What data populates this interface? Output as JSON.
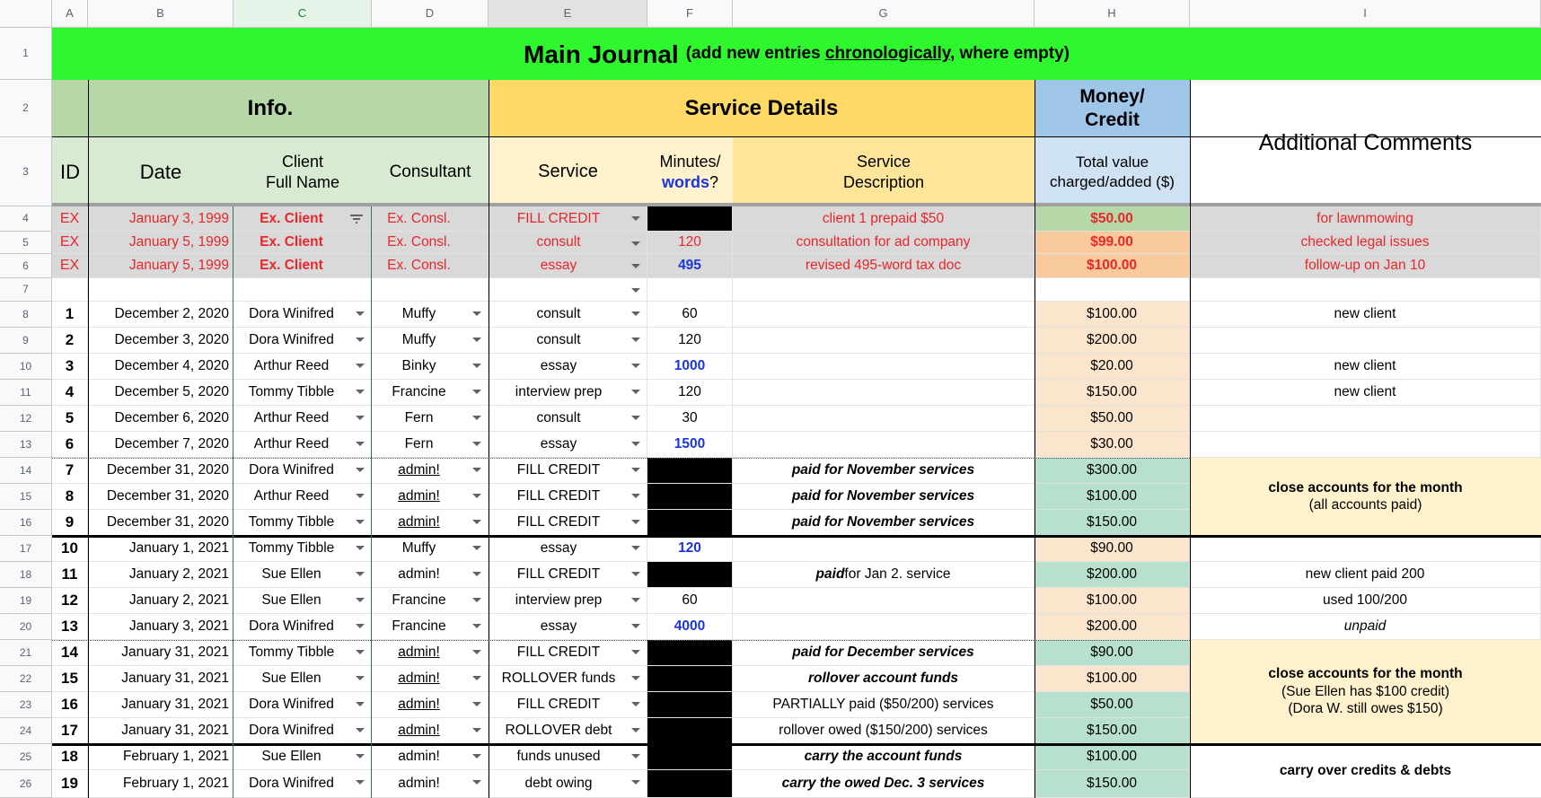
{
  "columns": [
    "A",
    "B",
    "C",
    "D",
    "E",
    "F",
    "G",
    "H",
    "I"
  ],
  "row_numbers": [
    "1",
    "2",
    "3",
    "4",
    "5",
    "6",
    "7",
    "8",
    "9",
    "10",
    "11",
    "12",
    "13",
    "14",
    "15",
    "16",
    "17",
    "18",
    "19",
    "20",
    "21",
    "22",
    "23",
    "24",
    "25",
    "26"
  ],
  "banner": {
    "title": "Main Journal",
    "note_prefix": "(add new entries ",
    "note_emph": "chronologically",
    "note_suffix": ", where empty)"
  },
  "groups": {
    "info": "Info.",
    "service_details": "Service Details",
    "money_line1": "Money/",
    "money_line2": "Credit",
    "comments": "Additional Comments"
  },
  "headers": {
    "id": "ID",
    "date": "Date",
    "client_l1": "Client",
    "client_l2": "Full Name",
    "consultant": "Consultant",
    "service": "Service",
    "minutes_l1": "Minutes/",
    "minutes_words": "words",
    "minutes_q": "?",
    "desc_l1": "Service",
    "desc_l2": "Description",
    "total_l1": "Total value",
    "total_l2": "charged/added ($)"
  },
  "rows": [
    {
      "id": "EX",
      "date": "January 3, 1999",
      "client": "Ex. Client",
      "consultant": "Ex. Consl.",
      "service": "FILL CREDIT",
      "minutes": "",
      "desc": "client 1 prepaid $50",
      "amount": "$50.00",
      "comment": "for lawnmowing"
    },
    {
      "id": "EX",
      "date": "January 5, 1999",
      "client": "Ex. Client",
      "consultant": "Ex. Consl.",
      "service": "consult",
      "minutes": "120",
      "desc": "consultation for ad company",
      "amount": "$99.00",
      "comment": "checked legal issues"
    },
    {
      "id": "EX",
      "date": "January 5, 1999",
      "client": "Ex. Client",
      "consultant": "Ex. Consl.",
      "service": "essay",
      "minutes": "495",
      "desc": "revised 495-word tax doc",
      "amount": "$100.00",
      "comment": "follow-up on Jan 10"
    },
    {
      "id": "",
      "date": "",
      "client": "",
      "consultant": "",
      "service": "",
      "minutes": "",
      "desc": "",
      "amount": "",
      "comment": ""
    },
    {
      "id": "1",
      "date": "December 2, 2020",
      "client": "Dora Winifred",
      "consultant": "Muffy",
      "service": "consult",
      "minutes": "60",
      "desc": "",
      "amount": "$100.00",
      "comment": "new client"
    },
    {
      "id": "2",
      "date": "December 3, 2020",
      "client": "Dora Winifred",
      "consultant": "Muffy",
      "service": "consult",
      "minutes": "120",
      "desc": "",
      "amount": "$200.00",
      "comment": ""
    },
    {
      "id": "3",
      "date": "December 4, 2020",
      "client": "Arthur Reed",
      "consultant": "Binky",
      "service": "essay",
      "minutes": "1000",
      "desc": "",
      "amount": "$20.00",
      "comment": "new client"
    },
    {
      "id": "4",
      "date": "December 5, 2020",
      "client": "Tommy Tibble",
      "consultant": "Francine",
      "service": "interview prep",
      "minutes": "120",
      "desc": "",
      "amount": "$150.00",
      "comment": "new client"
    },
    {
      "id": "5",
      "date": "December 6, 2020",
      "client": "Arthur Reed",
      "consultant": "Fern",
      "service": "consult",
      "minutes": "30",
      "desc": "",
      "amount": "$50.00",
      "comment": ""
    },
    {
      "id": "6",
      "date": "December 7, 2020",
      "client": "Arthur Reed",
      "consultant": "Fern",
      "service": "essay",
      "minutes": "1500",
      "desc": "",
      "amount": "$30.00",
      "comment": ""
    },
    {
      "id": "7",
      "date": "December 31, 2020",
      "client": "Dora Winifred",
      "consultant": "admin!",
      "service": "FILL CREDIT",
      "minutes": "",
      "desc": "paid for November services",
      "amount": "$300.00",
      "comment": ""
    },
    {
      "id": "8",
      "date": "December 31, 2020",
      "client": "Arthur Reed",
      "consultant": "admin!",
      "service": "FILL CREDIT",
      "minutes": "",
      "desc": "paid for November services",
      "amount": "$100.00",
      "comment": ""
    },
    {
      "id": "9",
      "date": "December 31, 2020",
      "client": "Tommy Tibble",
      "consultant": "admin!",
      "service": "FILL CREDIT",
      "minutes": "",
      "desc": "paid for November services",
      "amount": "$150.00",
      "comment": ""
    },
    {
      "id": "10",
      "date": "January 1, 2021",
      "client": "Tommy Tibble",
      "consultant": "Muffy",
      "service": "essay",
      "minutes": "120",
      "desc": "",
      "amount": "$90.00",
      "comment": ""
    },
    {
      "id": "11",
      "date": "January 2, 2021",
      "client": "Sue Ellen",
      "consultant": "admin!",
      "service": "FILL CREDIT",
      "minutes": "",
      "desc_b": "paid",
      "desc": " for Jan 2. service",
      "amount": "$200.00",
      "comment": "new client paid 200"
    },
    {
      "id": "12",
      "date": "January 2, 2021",
      "client": "Sue Ellen",
      "consultant": "Francine",
      "service": "interview prep",
      "minutes": "60",
      "desc": "",
      "amount": "$100.00",
      "comment": "used 100/200"
    },
    {
      "id": "13",
      "date": "January 3, 2021",
      "client": "Dora Winifred",
      "consultant": "Francine",
      "service": "essay",
      "minutes": "4000",
      "desc": "",
      "amount": "$200.00",
      "comment": "unpaid"
    },
    {
      "id": "14",
      "date": "January 31, 2021",
      "client": "Tommy Tibble",
      "consultant": "admin!",
      "service": "FILL CREDIT",
      "minutes": "",
      "desc": "paid for December services",
      "amount": "$90.00",
      "comment": ""
    },
    {
      "id": "15",
      "date": "January 31, 2021",
      "client": "Sue Ellen",
      "consultant": "admin!",
      "service": "ROLLOVER funds",
      "minutes": "",
      "desc": "rollover account funds",
      "amount": "$100.00",
      "comment": ""
    },
    {
      "id": "16",
      "date": "January 31, 2021",
      "client": "Dora Winifred",
      "consultant": "admin!",
      "service": "FILL CREDIT",
      "minutes": "",
      "desc_a": "PARTIALLY paid (",
      "desc_n": "$50/200",
      "desc_c": ") services",
      "amount": "$50.00",
      "comment": ""
    },
    {
      "id": "17",
      "date": "January 31, 2021",
      "client": "Dora Winifred",
      "consultant": "admin!",
      "service": "ROLLOVER debt",
      "minutes": "",
      "desc_a": "rollover owed (",
      "desc_n": "$150/200",
      "desc_c": ") services",
      "amount": "$150.00",
      "comment": ""
    },
    {
      "id": "18",
      "date": "February 1, 2021",
      "client": "Sue Ellen",
      "consultant": "admin!",
      "service": "funds unused",
      "minutes": "",
      "desc": "carry the account funds",
      "amount": "$100.00",
      "comment": ""
    },
    {
      "id": "19",
      "date": "February 1, 2021",
      "client": "Dora Winifred",
      "consultant": "admin!",
      "service": "debt owing",
      "minutes": "",
      "desc": "carry the owed Dec. 3 services",
      "amount": "$150.00",
      "comment": ""
    }
  ],
  "merged_comments": {
    "dec": {
      "l1": "close accounts for the month",
      "l2": "(all accounts paid)"
    },
    "jan": {
      "l1": "close accounts for the month",
      "l2": "(Sue Ellen has $100 credit)",
      "l3": "(Dora W. still owes $150)"
    },
    "feb": {
      "l1": "carry over credits & debts"
    }
  },
  "colors": {
    "banner": "#2ef72e",
    "info_header": "#b6d7a8",
    "info_sub": "#d9ead3",
    "service_header": "#ffd966",
    "service_sub": "#fff2cc",
    "desc_sub": "#ffe599",
    "money_header": "#9fc5e8",
    "money_sub": "#cfe2f3",
    "example_row": "#d9d9d9",
    "charge": "#fce5cd",
    "credit": "#b7e1cd",
    "comment_merge": "#fff2cc",
    "black": "#000000"
  }
}
